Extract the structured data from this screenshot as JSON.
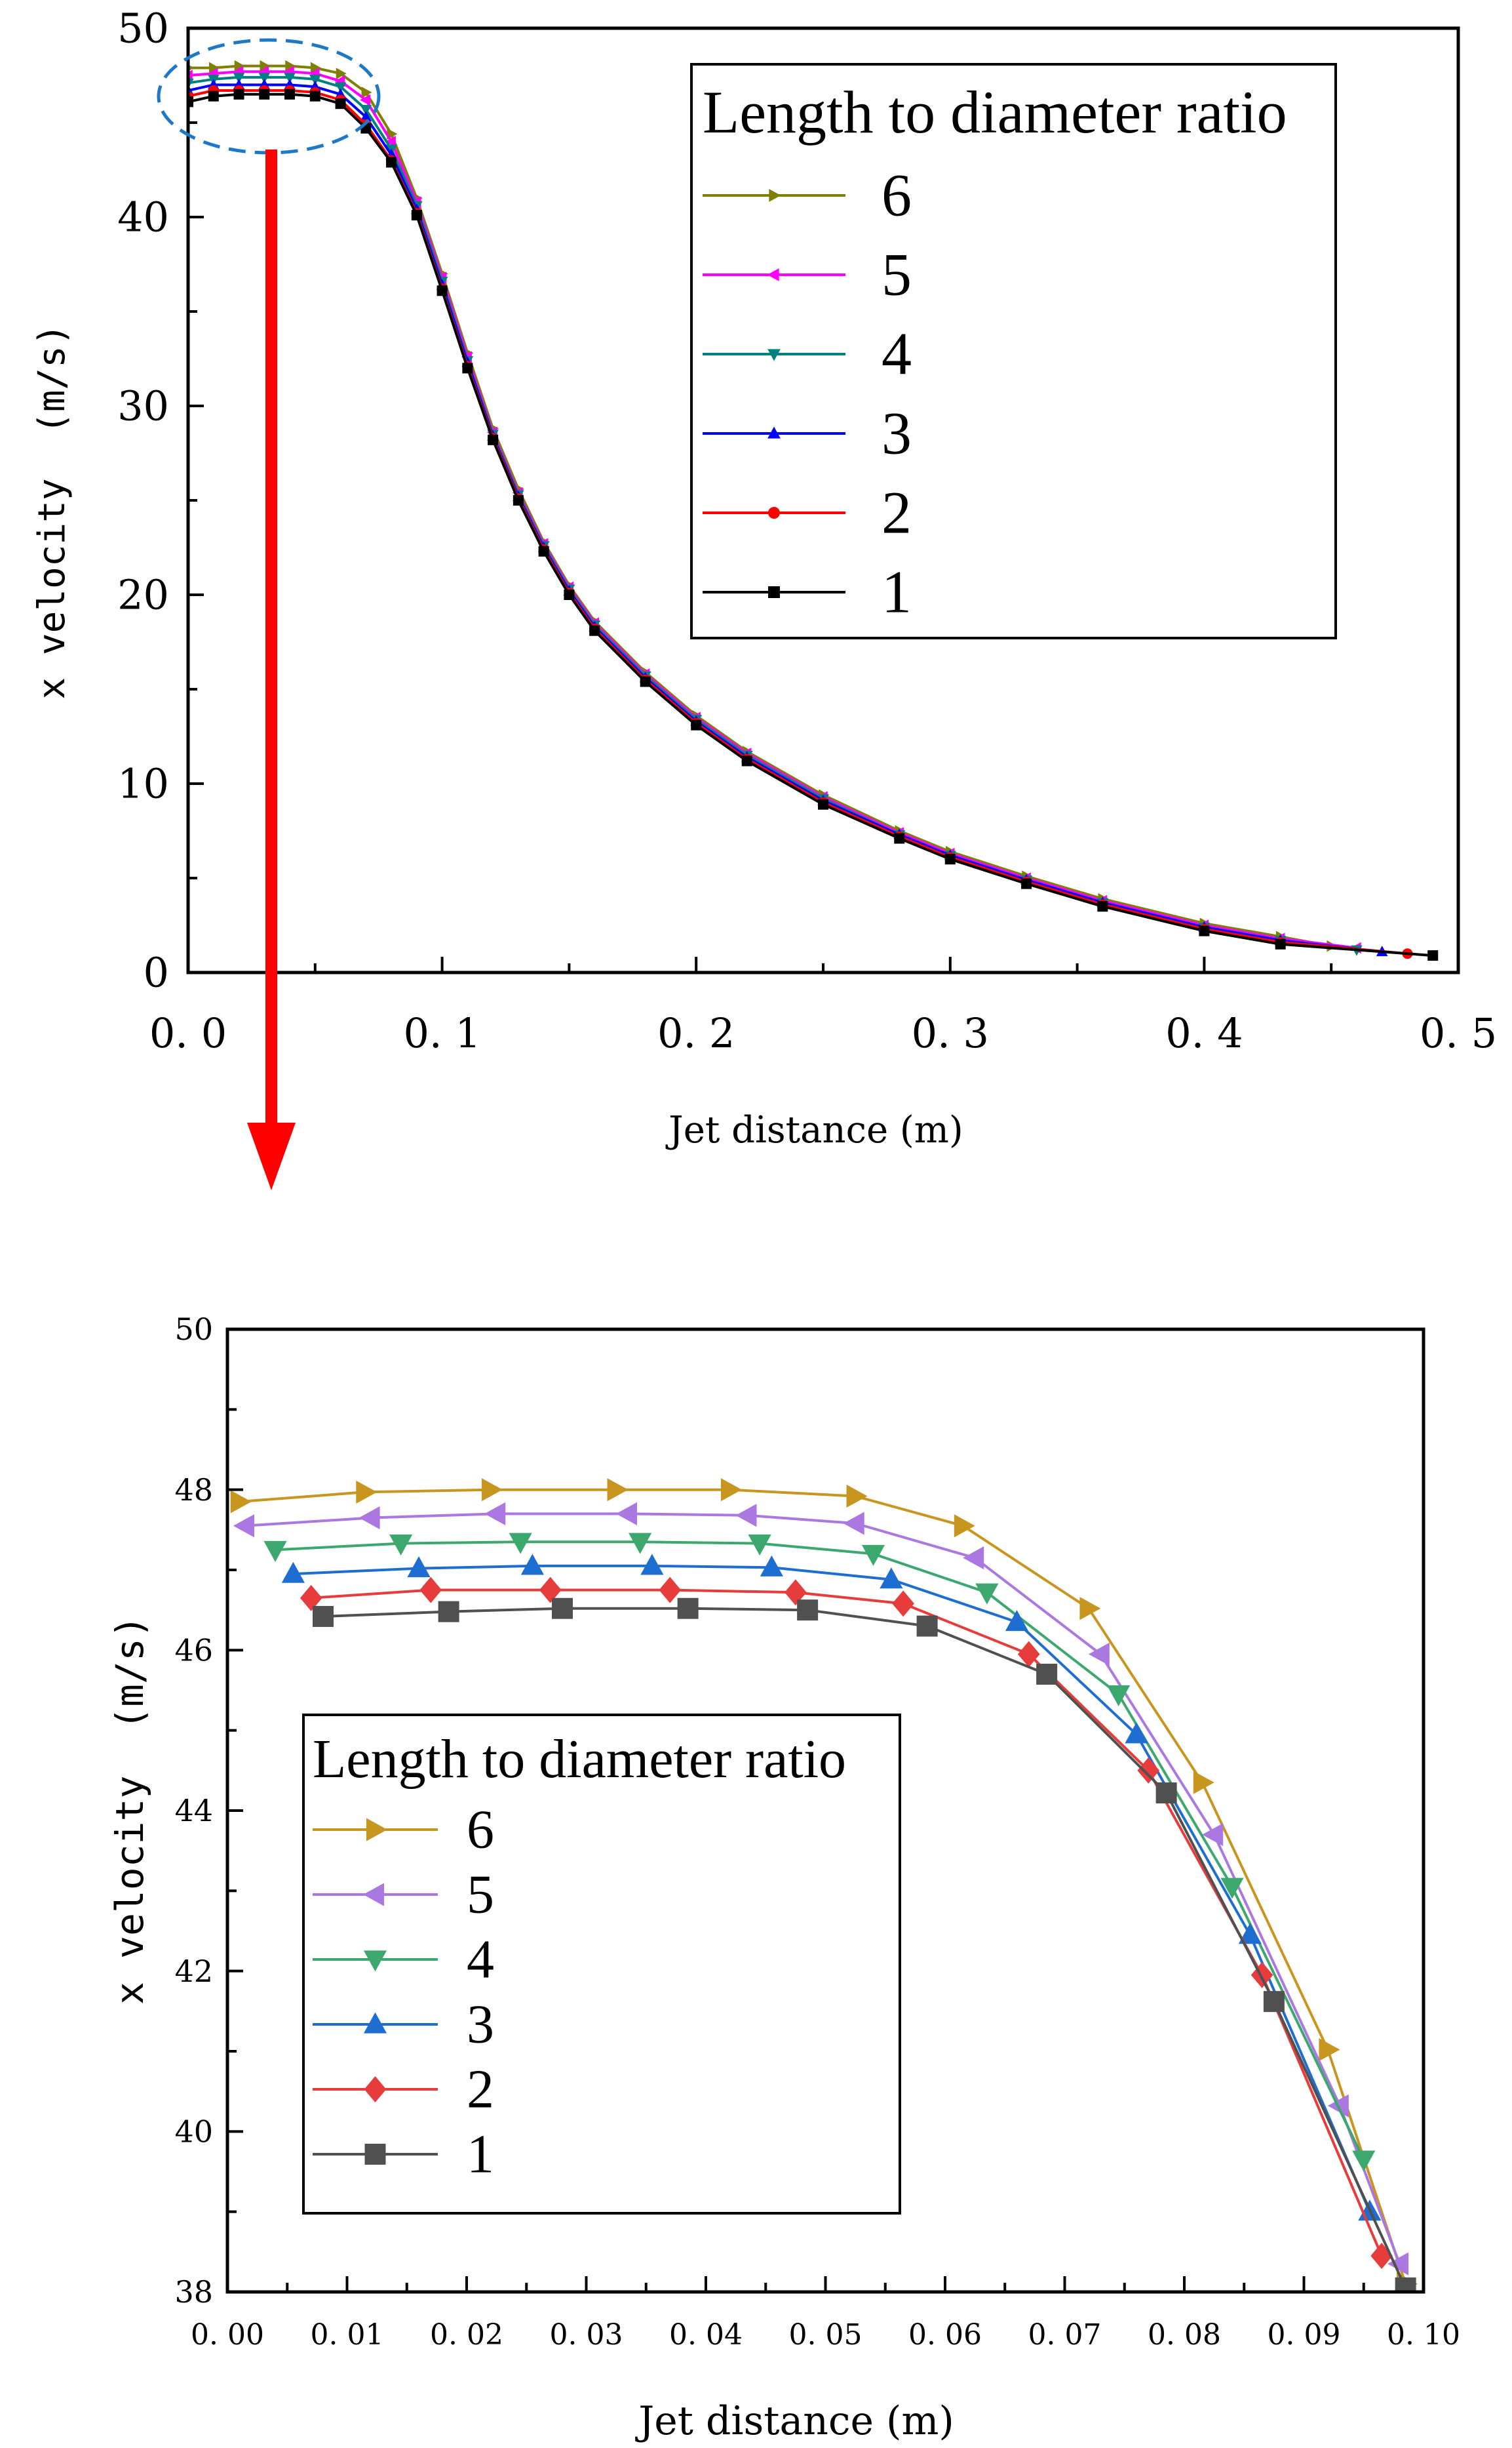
{
  "chart_data": [
    {
      "type": "line",
      "id": "full",
      "xlabel": "Jet distance (m)",
      "ylabel": "x velocity  (m/s)",
      "xlim": [
        0,
        0.5
      ],
      "ylim": [
        0,
        50
      ],
      "xticks": [
        "0. 0",
        "0. 1",
        "0. 2",
        "0. 3",
        "0. 4",
        "0. 5"
      ],
      "yticks": [
        "0",
        "10",
        "20",
        "30",
        "40",
        "50"
      ],
      "legend_title": "Length to diameter ratio",
      "series": [
        {
          "name": "6",
          "color": "#808000",
          "marker": "tri-right",
          "x": [
            0,
            0.01,
            0.02,
            0.03,
            0.04,
            0.05,
            0.06,
            0.07,
            0.08,
            0.09,
            0.1,
            0.11,
            0.12,
            0.13,
            0.14,
            0.15,
            0.16,
            0.18,
            0.2,
            0.22,
            0.25,
            0.28,
            0.3,
            0.33,
            0.36,
            0.4,
            0.43,
            0.45
          ],
          "y": [
            47.9,
            47.9,
            48,
            48,
            48,
            47.9,
            47.6,
            46.6,
            44.4,
            41,
            37,
            32.8,
            28.8,
            25.6,
            22.8,
            20.5,
            18.6,
            15.9,
            13.6,
            11.7,
            9.4,
            7.5,
            6.4,
            5.1,
            3.9,
            2.6,
            1.9,
            1.4
          ]
        },
        {
          "name": "5",
          "color": "#ff00ff",
          "marker": "tri-left",
          "x": [
            0,
            0.01,
            0.02,
            0.03,
            0.04,
            0.05,
            0.06,
            0.07,
            0.08,
            0.09,
            0.1,
            0.11,
            0.12,
            0.13,
            0.14,
            0.15,
            0.16,
            0.18,
            0.2,
            0.22,
            0.25,
            0.28,
            0.3,
            0.33,
            0.36,
            0.4,
            0.43,
            0.46
          ],
          "y": [
            47.5,
            47.6,
            47.7,
            47.7,
            47.7,
            47.6,
            47.2,
            46.2,
            44,
            40.8,
            36.8,
            32.6,
            28.6,
            25.4,
            22.7,
            20.4,
            18.5,
            15.8,
            13.5,
            11.6,
            9.3,
            7.4,
            6.3,
            5,
            3.8,
            2.5,
            1.8,
            1.3
          ]
        },
        {
          "name": "4",
          "color": "#008080",
          "marker": "tri-down",
          "x": [
            0,
            0.01,
            0.02,
            0.03,
            0.04,
            0.05,
            0.06,
            0.07,
            0.08,
            0.09,
            0.1,
            0.11,
            0.12,
            0.13,
            0.14,
            0.15,
            0.16,
            0.18,
            0.2,
            0.22,
            0.25,
            0.28,
            0.3,
            0.33,
            0.36,
            0.4,
            0.43,
            0.46
          ],
          "y": [
            47.1,
            47.3,
            47.4,
            47.4,
            47.4,
            47.3,
            46.9,
            45.7,
            43.6,
            40.6,
            36.6,
            32.4,
            28.5,
            25.3,
            22.6,
            20.3,
            18.4,
            15.7,
            13.4,
            11.5,
            9.2,
            7.3,
            6.2,
            4.9,
            3.7,
            2.4,
            1.7,
            1.2
          ]
        },
        {
          "name": "3",
          "color": "#0000ff",
          "marker": "tri-up",
          "x": [
            0,
            0.01,
            0.02,
            0.03,
            0.04,
            0.05,
            0.06,
            0.07,
            0.08,
            0.09,
            0.1,
            0.11,
            0.12,
            0.13,
            0.14,
            0.15,
            0.16,
            0.18,
            0.2,
            0.22,
            0.25,
            0.28,
            0.3,
            0.33,
            0.36,
            0.4,
            0.43,
            0.47
          ],
          "y": [
            46.7,
            47,
            47,
            47,
            47,
            46.9,
            46.5,
            45.3,
            43.3,
            40.4,
            36.4,
            32.3,
            28.4,
            25.2,
            22.5,
            20.2,
            18.3,
            15.6,
            13.3,
            11.4,
            9.1,
            7.3,
            6.2,
            4.9,
            3.7,
            2.4,
            1.7,
            1.1
          ]
        },
        {
          "name": "2",
          "color": "#ff0000",
          "marker": "circle",
          "x": [
            0,
            0.01,
            0.02,
            0.03,
            0.04,
            0.05,
            0.06,
            0.07,
            0.08,
            0.09,
            0.1,
            0.11,
            0.12,
            0.13,
            0.14,
            0.15,
            0.16,
            0.18,
            0.2,
            0.22,
            0.25,
            0.28,
            0.3,
            0.33,
            0.36,
            0.4,
            0.43,
            0.48
          ],
          "y": [
            46.4,
            46.7,
            46.7,
            46.7,
            46.7,
            46.6,
            46.2,
            44.9,
            43,
            40.2,
            36.2,
            32.1,
            28.3,
            25.1,
            22.4,
            20.1,
            18.2,
            15.5,
            13.2,
            11.3,
            9,
            7.2,
            6.1,
            4.8,
            3.6,
            2.3,
            1.6,
            1
          ]
        },
        {
          "name": "1",
          "color": "#000000",
          "marker": "square",
          "x": [
            0,
            0.01,
            0.02,
            0.03,
            0.04,
            0.05,
            0.06,
            0.07,
            0.08,
            0.09,
            0.1,
            0.11,
            0.12,
            0.13,
            0.14,
            0.15,
            0.16,
            0.18,
            0.2,
            0.22,
            0.25,
            0.28,
            0.3,
            0.33,
            0.36,
            0.4,
            0.43,
            0.49
          ],
          "y": [
            46.1,
            46.4,
            46.5,
            46.5,
            46.5,
            46.4,
            46,
            44.7,
            42.9,
            40.1,
            36.1,
            32,
            28.2,
            25,
            22.3,
            20,
            18.1,
            15.4,
            13.1,
            11.2,
            8.9,
            7.1,
            6,
            4.7,
            3.5,
            2.2,
            1.5,
            0.9
          ]
        }
      ]
    },
    {
      "type": "line",
      "id": "zoom",
      "xlabel": "Jet distance (m)",
      "ylabel": "x velocity  (m/s)",
      "xlim": [
        0,
        0.1
      ],
      "ylim": [
        38,
        50
      ],
      "xticks": [
        "0. 00",
        "0. 01",
        "0. 02",
        "0. 03",
        "0. 04",
        "0. 05",
        "0. 06",
        "0. 07",
        "0. 08",
        "0. 09",
        "0. 10"
      ],
      "yticks": [
        "38",
        "40",
        "42",
        "44",
        "46",
        "48",
        "50"
      ],
      "legend_title": "Length to diameter ratio",
      "series": [
        {
          "name": "6",
          "color": "#c8961e",
          "marker": "tri-right",
          "x": [
            0.001,
            0.0115,
            0.022,
            0.0325,
            0.042,
            0.0525,
            0.0615,
            0.072,
            0.0815,
            0.092,
            0.0985
          ],
          "y": [
            47.85,
            47.97,
            48,
            48,
            48,
            47.92,
            47.55,
            46.52,
            44.35,
            41.02,
            38.1
          ]
        },
        {
          "name": "5",
          "color": "#aa78e0",
          "marker": "tri-left",
          "x": [
            0.0015,
            0.012,
            0.0225,
            0.0335,
            0.0435,
            0.0525,
            0.0625,
            0.073,
            0.0825,
            0.093,
            0.098
          ],
          "y": [
            47.55,
            47.65,
            47.7,
            47.7,
            47.68,
            47.58,
            47.15,
            45.95,
            43.7,
            40.32,
            38.35
          ]
        },
        {
          "name": "4",
          "color": "#3ca86e",
          "marker": "tri-down",
          "x": [
            0.004,
            0.0145,
            0.0245,
            0.0345,
            0.0445,
            0.054,
            0.0635,
            0.0745,
            0.084,
            0.095
          ],
          "y": [
            47.25,
            47.33,
            47.35,
            47.35,
            47.33,
            47.2,
            46.72,
            45.45,
            43.05,
            39.65
          ]
        },
        {
          "name": "3",
          "color": "#1e6ed2",
          "marker": "tri-up",
          "x": [
            0.0055,
            0.016,
            0.0255,
            0.0355,
            0.0455,
            0.0555,
            0.066,
            0.076,
            0.0855,
            0.0955
          ],
          "y": [
            46.95,
            47.02,
            47.05,
            47.05,
            47.03,
            46.88,
            46.35,
            44.95,
            42.45,
            39
          ]
        },
        {
          "name": "2",
          "color": "#e63c3c",
          "marker": "diamond",
          "x": [
            0.007,
            0.017,
            0.027,
            0.037,
            0.0475,
            0.0565,
            0.067,
            0.077,
            0.0865,
            0.0965
          ],
          "y": [
            46.65,
            46.75,
            46.75,
            46.75,
            46.72,
            46.58,
            45.95,
            44.5,
            41.95,
            38.45
          ]
        },
        {
          "name": "1",
          "color": "#505050",
          "marker": "square",
          "x": [
            0.008,
            0.0185,
            0.028,
            0.0385,
            0.0485,
            0.0585,
            0.0685,
            0.0785,
            0.0875,
            0.0985
          ],
          "y": [
            46.42,
            46.48,
            46.52,
            46.52,
            46.5,
            46.3,
            45.7,
            44.22,
            41.62,
            38.05
          ]
        }
      ]
    }
  ]
}
